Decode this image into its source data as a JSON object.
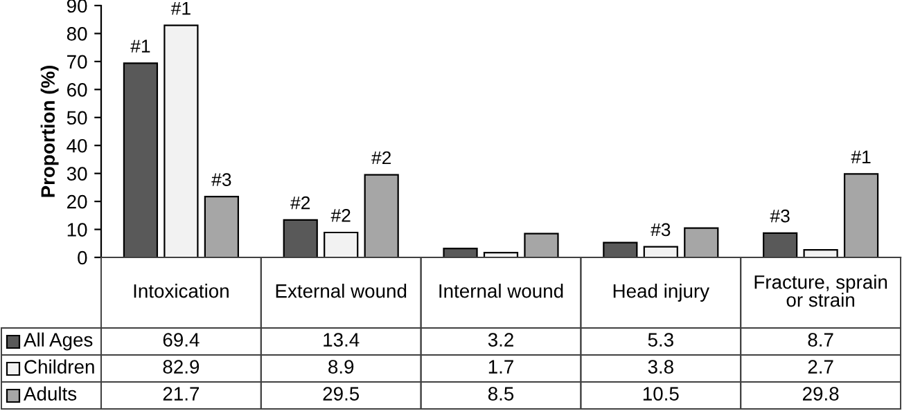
{
  "chart_data": {
    "type": "bar",
    "ylabel": "Proportion (%)",
    "categories": [
      "Intoxication",
      "External wound",
      "Internal wound",
      "Head injury",
      "Fracture, sprain\nor strain"
    ],
    "series": [
      {
        "name": "All Ages",
        "color": "#595959",
        "values": [
          69.4,
          13.4,
          3.2,
          5.3,
          8.7
        ]
      },
      {
        "name": "Children",
        "color": "#f2f2f2",
        "values": [
          82.9,
          8.9,
          1.7,
          3.8,
          2.7
        ]
      },
      {
        "name": "Adults",
        "color": "#a6a6a6",
        "values": [
          21.7,
          29.5,
          8.5,
          10.5,
          29.8
        ]
      }
    ],
    "ylim": [
      0,
      90
    ],
    "yticks": [
      0,
      10,
      20,
      30,
      40,
      50,
      60,
      70,
      80,
      90
    ],
    "grid": false,
    "legend": "bottom left",
    "data_labels": true,
    "annotations": [
      {
        "text": "#1",
        "y": 69.4
      },
      {
        "text": "#1",
        "y": 82.9
      },
      {
        "text": "#3",
        "y": 21.7
      },
      {
        "text": "#2",
        "y": 13.4
      },
      {
        "text": "#2",
        "y": 8.9
      },
      {
        "text": "#2",
        "y": 29.5
      },
      {
        "text": "#3",
        "y": 3.8
      },
      {
        "text": "#3",
        "y": 8.7
      },
      {
        "text": "#1",
        "y": 29.8
      }
    ]
  }
}
